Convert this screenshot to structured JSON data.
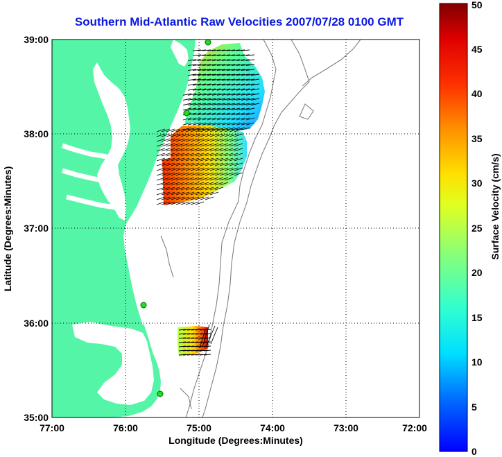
{
  "title": "Southern Mid-Atlantic Raw Velocities 2007/07/28 0100 GMT",
  "map": {
    "xlabel": "Longitude (Degrees:Minutes)",
    "ylabel": "Latitude (Degrees:Minutes)",
    "lon_ticks": [
      "77:00",
      "76:00",
      "75:00",
      "74:00",
      "73:00",
      "72:00"
    ],
    "lat_ticks": [
      "39:00",
      "38:00",
      "37:00",
      "36:00",
      "35:00"
    ],
    "lon_range": [
      -77,
      -72
    ],
    "lat_range": [
      35,
      39
    ],
    "grid": "dotted",
    "land_color": "#55f5a8",
    "radar_sites": [
      [
        -74.9,
        39.0
      ],
      [
        -75.15,
        38.2
      ],
      [
        -75.78,
        36.18
      ],
      [
        -75.5,
        35.25
      ]
    ]
  },
  "colorbar": {
    "label": "Surface Velocity (cm/s)",
    "ticks": [
      "0",
      "5",
      "10",
      "15",
      "20",
      "25",
      "30",
      "35",
      "40",
      "45",
      "50"
    ],
    "min": 0,
    "max": 50,
    "colormap": [
      "#0000ff",
      "#00a0ff",
      "#00ffff",
      "#40ffc0",
      "#80ff80",
      "#c0ff40",
      "#ffff00",
      "#ffb000",
      "#ff6000",
      "#ff0000",
      "#800000"
    ]
  }
}
